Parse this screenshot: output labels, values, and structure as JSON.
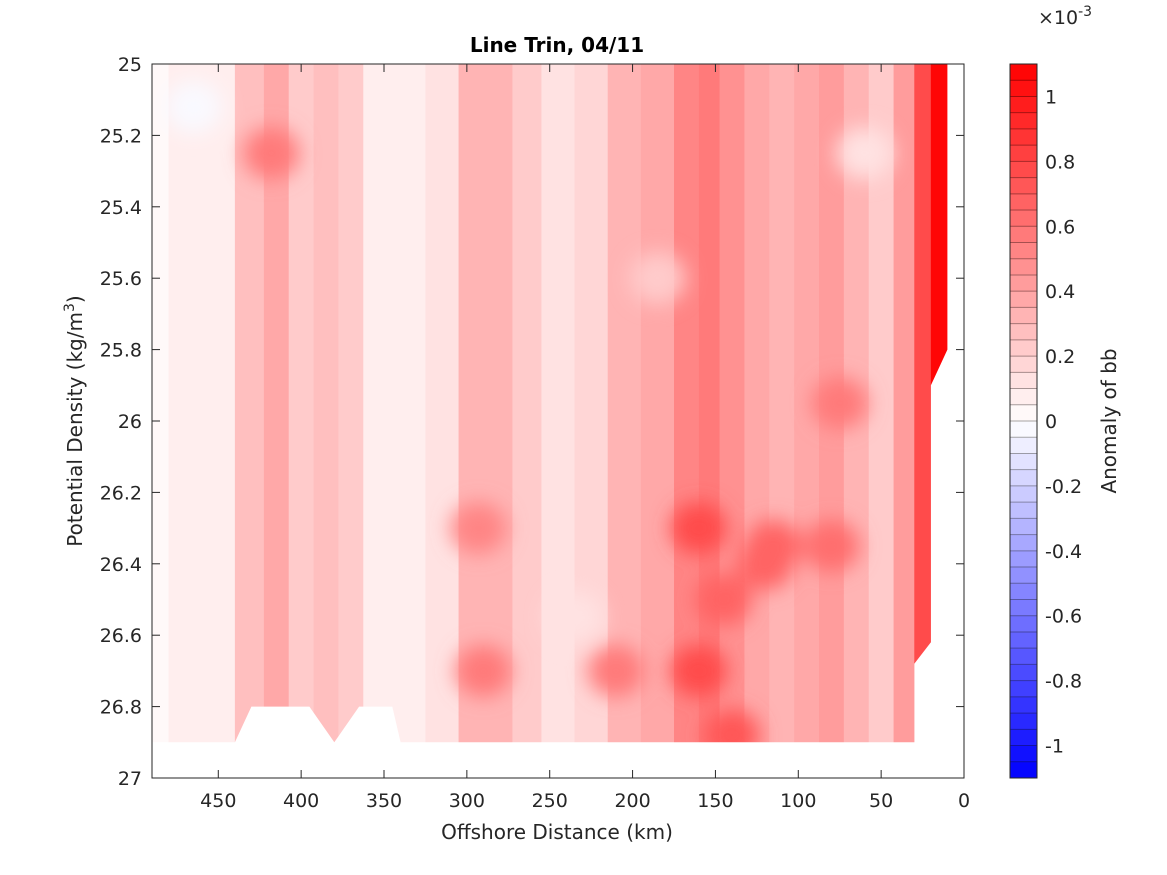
{
  "chart_data": {
    "type": "heatmap",
    "title": "Line Trin, 04/11",
    "xlabel": "Offshore Distance (km)",
    "ylabel_main": "Potential Density (kg/m",
    "ylabel_sup": "3",
    "ylabel_close": ")",
    "x_reversed": true,
    "xlim": [
      0,
      490
    ],
    "ylim": [
      25,
      27
    ],
    "y_reversed": true,
    "x_ticks": [
      450,
      400,
      350,
      300,
      250,
      200,
      150,
      100,
      50,
      0
    ],
    "y_ticks": [
      25,
      25.2,
      25.4,
      25.6,
      25.8,
      26,
      26.2,
      26.4,
      26.6,
      26.8,
      27
    ],
    "y_tick_labels": [
      "25",
      "25.2",
      "25.4",
      "25.6",
      "25.8",
      "26",
      "26.2",
      "26.4",
      "26.6",
      "26.8",
      "27"
    ],
    "colorbar": {
      "label": "Anomaly of bb",
      "exponent_prefix": "×10",
      "exponent": "-3",
      "range": [
        -1.1,
        1.1
      ],
      "ticks": [
        1,
        0.8,
        0.6,
        0.4,
        0.2,
        0,
        -0.2,
        -0.4,
        -0.6,
        -0.8,
        -1
      ],
      "tick_labels": [
        "1",
        "0.8",
        "0.6",
        "0.4",
        "0.2",
        "0",
        "-0.2",
        "-0.4",
        "-0.6",
        "-0.8",
        "-1"
      ],
      "levels": 44,
      "colors": {
        "low": "#0000ff",
        "mid": "#ffffff",
        "high": "#ff0000"
      }
    },
    "columns": [
      {
        "x": 490,
        "v": 0.03
      },
      {
        "x": 470,
        "v": 0.05
      },
      {
        "x": 450,
        "v": 0.06
      },
      {
        "x": 430,
        "v": 0.25
      },
      {
        "x": 415,
        "v": 0.38
      },
      {
        "x": 400,
        "v": 0.22
      },
      {
        "x": 385,
        "v": 0.28
      },
      {
        "x": 370,
        "v": 0.2
      },
      {
        "x": 355,
        "v": 0.09
      },
      {
        "x": 335,
        "v": 0.08
      },
      {
        "x": 315,
        "v": 0.14
      },
      {
        "x": 295,
        "v": 0.32
      },
      {
        "x": 280,
        "v": 0.3
      },
      {
        "x": 265,
        "v": 0.2
      },
      {
        "x": 245,
        "v": 0.13
      },
      {
        "x": 225,
        "v": 0.18
      },
      {
        "x": 205,
        "v": 0.3
      },
      {
        "x": 185,
        "v": 0.36
      },
      {
        "x": 165,
        "v": 0.52
      },
      {
        "x": 155,
        "v": 0.55
      },
      {
        "x": 140,
        "v": 0.45
      },
      {
        "x": 125,
        "v": 0.35
      },
      {
        "x": 110,
        "v": 0.3
      },
      {
        "x": 95,
        "v": 0.38
      },
      {
        "x": 80,
        "v": 0.42
      },
      {
        "x": 65,
        "v": 0.3
      },
      {
        "x": 50,
        "v": 0.22
      },
      {
        "x": 35,
        "v": 0.4
      },
      {
        "x": 25,
        "v": 0.75
      },
      {
        "x": 15,
        "v": 1.05
      },
      {
        "x": 8,
        "v": 1.1
      }
    ],
    "features": [
      {
        "x": 293,
        "y": 26.3,
        "v": 0.5
      },
      {
        "x": 290,
        "y": 26.7,
        "v": 0.55
      },
      {
        "x": 210,
        "y": 26.7,
        "v": 0.55
      },
      {
        "x": 160,
        "y": 26.3,
        "v": 0.75
      },
      {
        "x": 160,
        "y": 26.7,
        "v": 0.75
      },
      {
        "x": 145,
        "y": 26.5,
        "v": 0.65
      },
      {
        "x": 120,
        "y": 26.4,
        "v": 0.65
      },
      {
        "x": 115,
        "y": 26.35,
        "v": 0.65
      },
      {
        "x": 80,
        "y": 26.35,
        "v": 0.6
      },
      {
        "x": 75,
        "y": 25.95,
        "v": 0.55
      },
      {
        "x": 140,
        "y": 26.88,
        "v": 0.7
      },
      {
        "x": 418,
        "y": 25.25,
        "v": 0.55
      },
      {
        "x": 60,
        "y": 25.25,
        "v": 0.1
      },
      {
        "x": 185,
        "y": 25.6,
        "v": 0.2
      },
      {
        "x": 235,
        "y": 26.55,
        "v": 0.12
      },
      {
        "x": 465,
        "y": 25.12,
        "v": -0.02
      }
    ],
    "nodata": [
      {
        "x": 490,
        "y": 26.9
      },
      {
        "x": 440,
        "y": 26.9
      },
      {
        "x": 430,
        "y": 26.8
      },
      {
        "x": 395,
        "y": 26.8
      },
      {
        "x": 380,
        "y": 26.9
      },
      {
        "x": 365,
        "y": 26.8
      },
      {
        "x": 345,
        "y": 26.8
      },
      {
        "x": 340,
        "y": 26.9
      },
      {
        "x": 30,
        "y": 26.9
      },
      {
        "x": 30,
        "y": 26.68
      },
      {
        "x": 20,
        "y": 26.62
      },
      {
        "x": 20,
        "y": 25.9
      },
      {
        "x": 10,
        "y": 25.8
      },
      {
        "x": 10,
        "y": 25.0
      },
      {
        "x": 0,
        "y": 25.0
      },
      {
        "x": 0,
        "y": 27.0
      },
      {
        "x": 490,
        "y": 27.0
      }
    ]
  }
}
